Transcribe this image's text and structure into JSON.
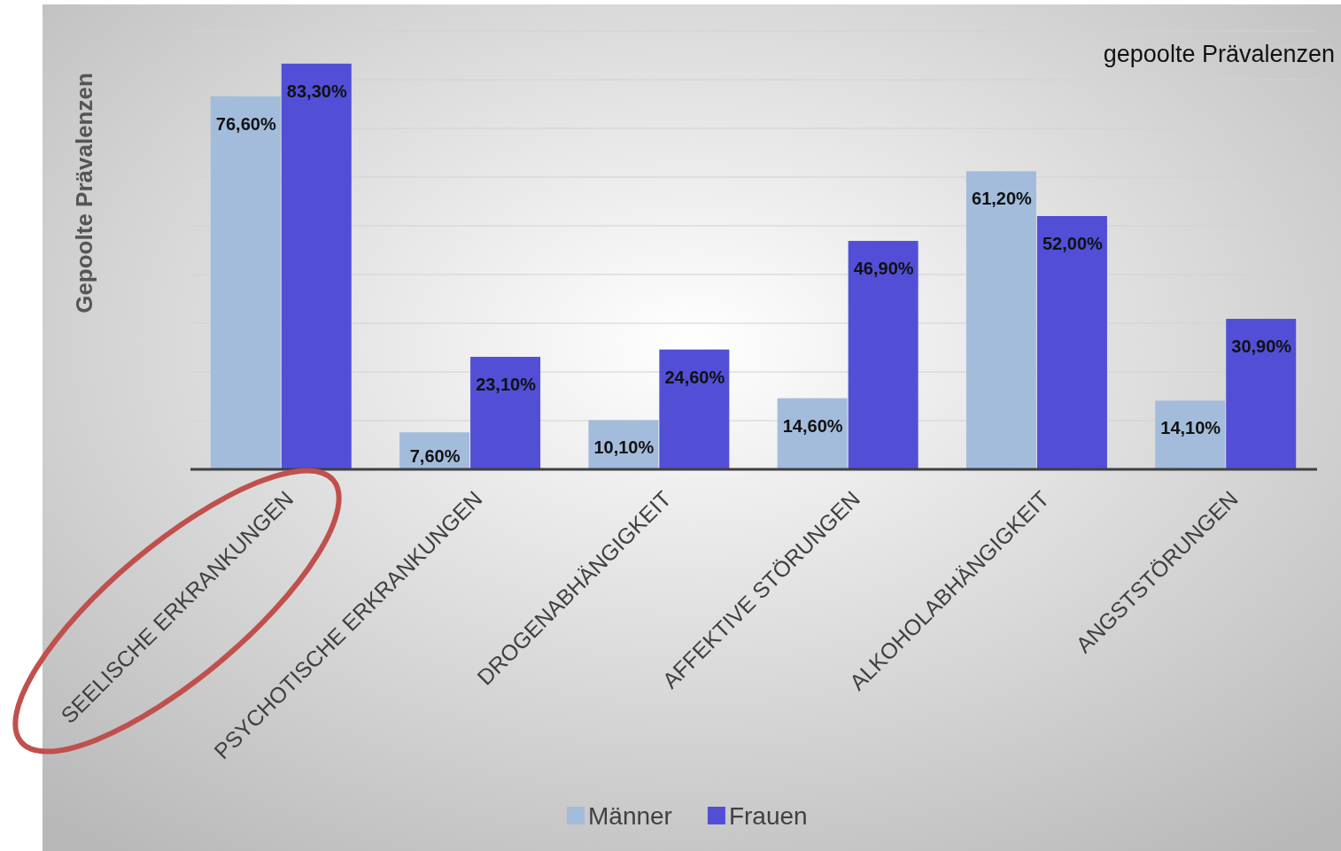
{
  "chart_data": {
    "type": "bar",
    "title": "gepoolte Prävalenzen",
    "ylabel": "Gepoolte Prävalenzen",
    "categories": [
      "SEELISCHE ERKRANKUNGEN",
      "PSYCHOTISCHE ERKRANKUNGEN",
      "DROGENABHÄNGIGKEIT",
      "AFFEKTIVE STÖRUNGEN",
      "ALKOHOLABHÄNGIGKEIT",
      "ANGSTSTÖRUNGEN"
    ],
    "series": [
      {
        "name": "Männer",
        "color": "#a3bcdc",
        "values": [
          76.6,
          7.6,
          10.1,
          14.6,
          61.2,
          14.1
        ],
        "value_labels": [
          "76,60%",
          "7,60%",
          "10,10%",
          "14,60%",
          "61,20%",
          "14,10%"
        ]
      },
      {
        "name": "Frauen",
        "color": "#524fd6",
        "values": [
          83.3,
          23.1,
          24.6,
          46.9,
          52.0,
          30.9
        ],
        "value_labels": [
          "83,30%",
          "23,10%",
          "24,60%",
          "46,90%",
          "52,00%",
          "30,90%"
        ]
      }
    ],
    "ylim": [
      0,
      90
    ],
    "yticks": [
      {
        "value": 0,
        "label": null
      },
      {
        "value": 10,
        "label": null
      },
      {
        "value": 20,
        "label": null
      },
      {
        "value": 30,
        "label": null
      },
      {
        "value": 40,
        "label": null
      },
      {
        "value": 50,
        "label": null
      },
      {
        "value": 60,
        "label": null
      },
      {
        "value": 70,
        "label": null
      },
      {
        "value": 80,
        "label": null
      },
      {
        "value": 90,
        "label": null
      }
    ],
    "tick_labels": "x",
    "grid": "y",
    "legend": "bottom"
  }
}
